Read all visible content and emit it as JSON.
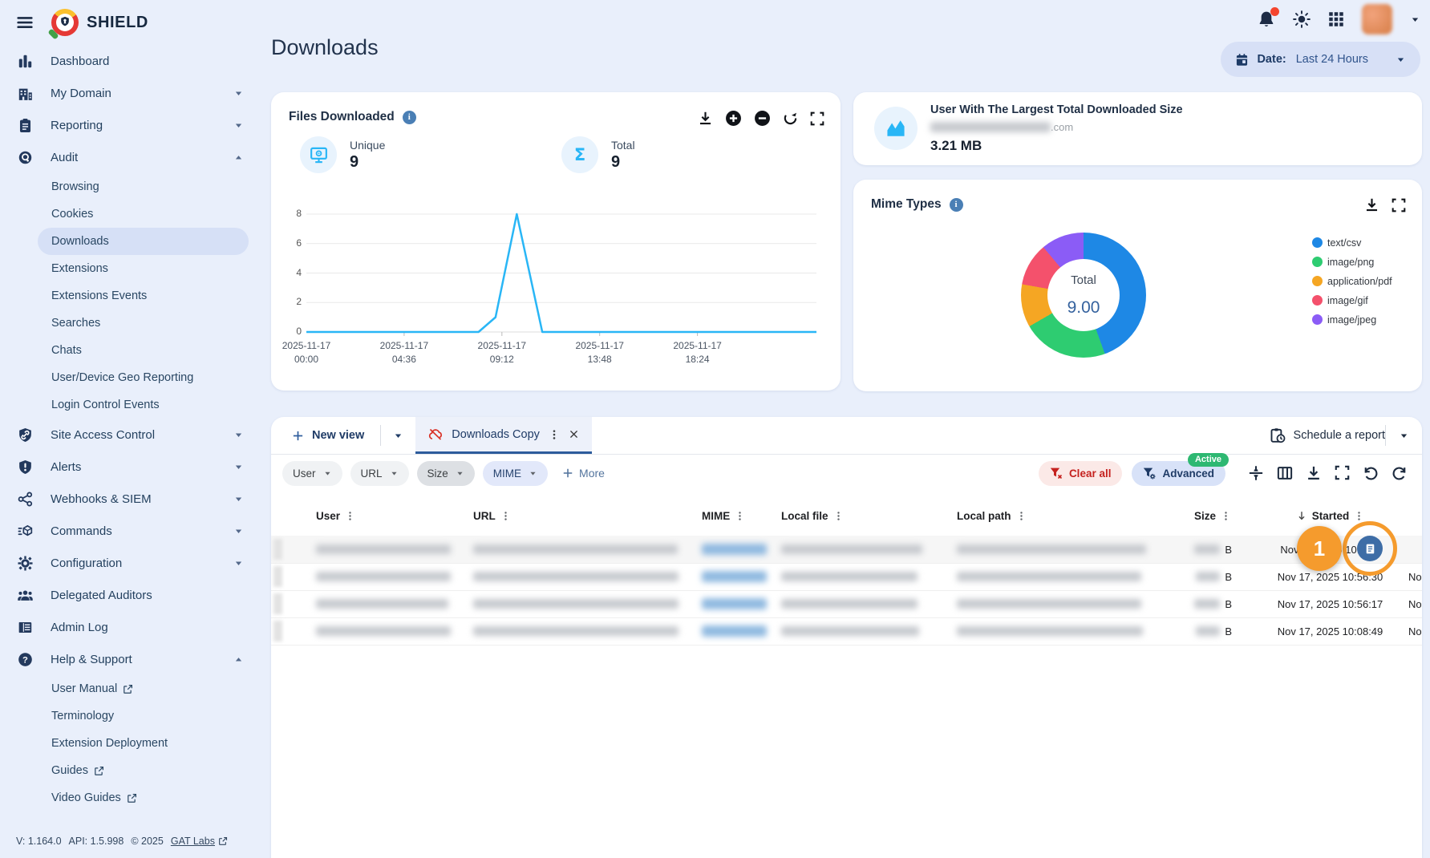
{
  "app": {
    "name": "SHIELD"
  },
  "sidebar": {
    "items": [
      {
        "label": "Dashboard"
      },
      {
        "label": "My Domain"
      },
      {
        "label": "Reporting"
      },
      {
        "label": "Audit"
      },
      {
        "label": "Site Access Control"
      },
      {
        "label": "Alerts"
      },
      {
        "label": "Webhooks & SIEM"
      },
      {
        "label": "Commands"
      },
      {
        "label": "Configuration"
      },
      {
        "label": "Delegated Auditors"
      },
      {
        "label": "Admin Log"
      },
      {
        "label": "Help & Support"
      }
    ],
    "audit_children": [
      {
        "label": "Browsing"
      },
      {
        "label": "Cookies"
      },
      {
        "label": "Downloads",
        "active": true
      },
      {
        "label": "Extensions"
      },
      {
        "label": "Extensions Events"
      },
      {
        "label": "Searches"
      },
      {
        "label": "Chats"
      },
      {
        "label": "User/Device Geo Reporting"
      },
      {
        "label": "Login Control Events"
      }
    ],
    "help_children": [
      {
        "label": "User Manual",
        "external": true
      },
      {
        "label": "Terminology"
      },
      {
        "label": "Extension Deployment"
      },
      {
        "label": "Guides",
        "external": true
      },
      {
        "label": "Video Guides",
        "external": true
      }
    ],
    "footer": {
      "version": "V: 1.164.0",
      "api": "API: 1.5.998",
      "copyright": "© 2025",
      "link_label": "GAT Labs"
    }
  },
  "header": {
    "title": "Downloads",
    "date_label": "Date:",
    "date_value": "Last 24 Hours"
  },
  "files_card": {
    "title": "Files Downloaded",
    "stats": [
      {
        "label": "Unique",
        "value": "9"
      },
      {
        "label": "Total",
        "value": "9"
      }
    ]
  },
  "largest_user_card": {
    "title": "User With The Largest Total Downloaded Size",
    "email_visible": ".com",
    "value": "3.21 MB"
  },
  "mime_card": {
    "title": "Mime Types"
  },
  "chart_data": [
    {
      "type": "line",
      "title": "Files Downloaded",
      "x_ticks": [
        "2025-11-17 00:00",
        "2025-11-17 04:36",
        "2025-11-17 09:12",
        "2025-11-17 13:48",
        "2025-11-17 18:24"
      ],
      "x_tick_hours": [
        0,
        4.6,
        9.2,
        13.8,
        18.4
      ],
      "xlim_hours": [
        0,
        24
      ],
      "y_ticks": [
        0,
        2,
        4,
        6,
        8
      ],
      "ylim": [
        0,
        8
      ],
      "points": [
        {
          "h": 0,
          "v": 0
        },
        {
          "h": 8.1,
          "v": 0
        },
        {
          "h": 8.9,
          "v": 1
        },
        {
          "h": 9.9,
          "v": 8
        },
        {
          "h": 11.1,
          "v": 0
        },
        {
          "h": 24,
          "v": 0
        }
      ],
      "line_color": "#29b6f6",
      "grid": true
    },
    {
      "type": "pie",
      "title": "Mime Types",
      "labels": [
        "text/csv",
        "image/png",
        "application/pdf",
        "image/gif",
        "image/jpeg"
      ],
      "values": [
        4,
        2,
        1,
        1,
        1
      ],
      "colors": [
        "#1e88e5",
        "#2ecc71",
        "#f5a623",
        "#f4516c",
        "#8b5cf6"
      ],
      "center_label": "Total",
      "center_value": "9.00",
      "legend_position": "right"
    }
  ],
  "view_bar": {
    "new_view_label": "New view",
    "active_tab_label": "Downloads Copy",
    "schedule_label": "Schedule a report"
  },
  "filter_bar": {
    "chips": [
      {
        "label": "User"
      },
      {
        "label": "URL"
      },
      {
        "label": "Size"
      },
      {
        "label": "MIME"
      }
    ],
    "more_label": "More",
    "clear_all_label": "Clear all",
    "advanced_label": "Advanced",
    "active_badge": "Active"
  },
  "table": {
    "columns": [
      {
        "label": "User"
      },
      {
        "label": "URL"
      },
      {
        "label": "MIME"
      },
      {
        "label": "Local file"
      },
      {
        "label": "Local path"
      },
      {
        "label": "Size"
      },
      {
        "label": "Started",
        "sorted": "desc"
      }
    ],
    "rows": [
      {
        "size_unit": "B",
        "started": "Nov 17, 2025 10:56:4",
        "trailing": ""
      },
      {
        "size_unit": "B",
        "started": "Nov 17, 2025 10:56:30",
        "trailing": "No"
      },
      {
        "size_unit": "B",
        "started": "Nov 17, 2025 10:56:17",
        "trailing": "No"
      },
      {
        "size_unit": "B",
        "started": "Nov 17, 2025 10:08:49",
        "trailing": "No"
      }
    ]
  },
  "annotation": {
    "step_number": "1"
  },
  "colors": {
    "accent_cyan": "#29b6f6",
    "navy": "#1f3b66",
    "active_green": "#2eb872",
    "annotation_orange": "#f59b2d",
    "clear_red": "#c5221f",
    "page_bg": "#e9effb"
  }
}
